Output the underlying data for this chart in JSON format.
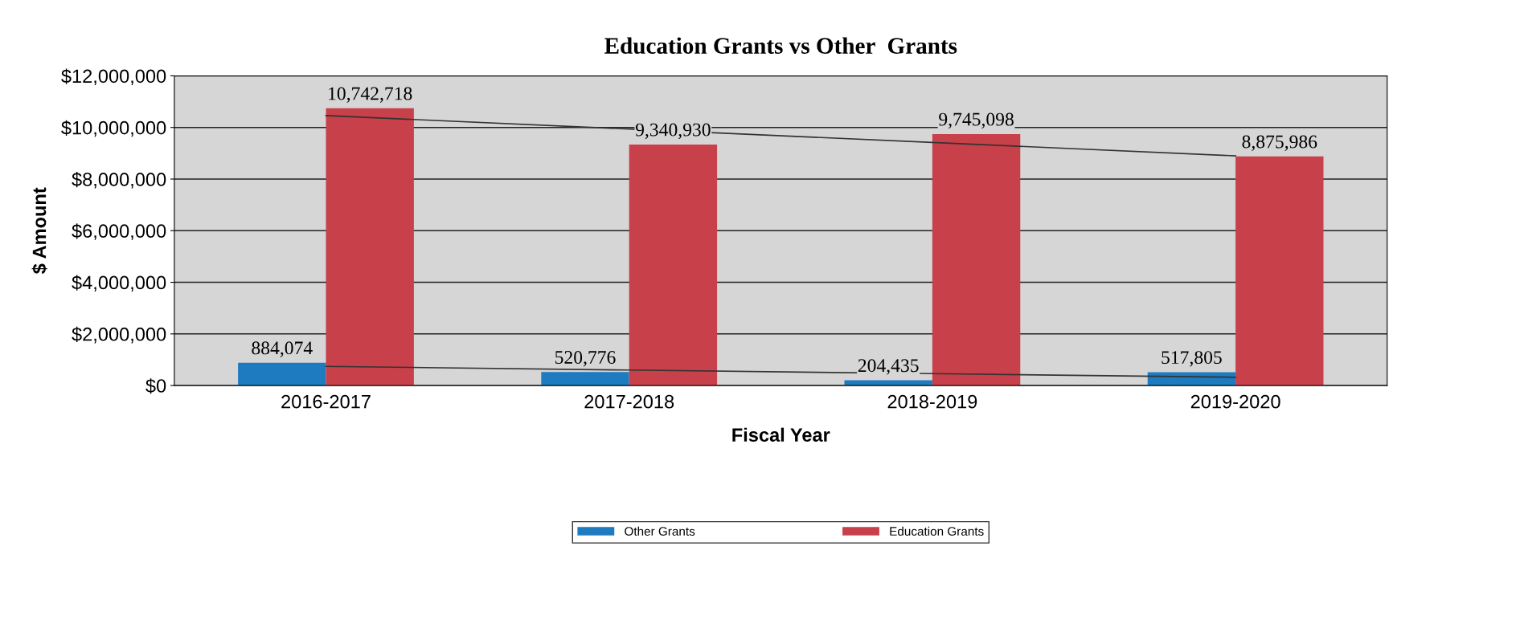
{
  "chart_data": {
    "type": "bar",
    "title": "Education Grants vs Other  Grants",
    "xlabel": "Fiscal Year",
    "ylabel": "$ Amount",
    "categories": [
      "2016-2017",
      "2017-2018",
      "2018-2019",
      "2019-2020"
    ],
    "series": [
      {
        "name": "Other Grants",
        "color": "#1f7bbf",
        "values": [
          884074,
          520776,
          204435,
          517805
        ],
        "value_labels": [
          "884,074",
          "520,776",
          "204,435",
          "517,805"
        ]
      },
      {
        "name": "Education Grants",
        "color": "#c8404a",
        "values": [
          10742718,
          9340930,
          9745098,
          8875986
        ],
        "value_labels": [
          "10,742,718",
          "9,340,930",
          "9,745,098",
          "8,875,986"
        ]
      },
      {
        "type": "line",
        "color": "#333333",
        "values": [
          740000,
          600000,
          460000,
          320000
        ]
      },
      {
        "type": "line",
        "color": "#333333",
        "values": [
          10460000,
          9940000,
          9420000,
          8900000
        ]
      }
    ],
    "ylim": [
      0,
      12000000
    ],
    "yticks": [
      {
        "value": 0,
        "label": "$0"
      },
      {
        "value": 2000000,
        "label": "$2,000,000"
      },
      {
        "value": 4000000,
        "label": "$4,000,000"
      },
      {
        "value": 6000000,
        "label": "$6,000,000"
      },
      {
        "value": 8000000,
        "label": "$8,000,000"
      },
      {
        "value": 10000000,
        "label": "$10,000,000"
      },
      {
        "value": 12000000,
        "label": "$12,000,000"
      }
    ],
    "grid": "y",
    "legend": "bottom"
  }
}
